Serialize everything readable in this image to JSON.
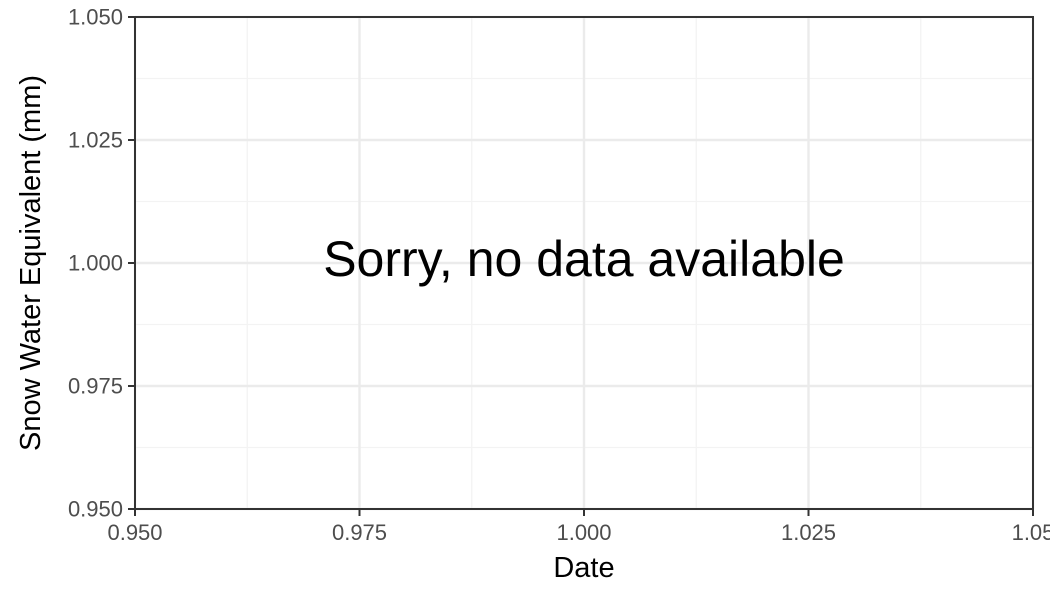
{
  "chart_data": {
    "type": "line",
    "title": "",
    "xlabel": "Date",
    "ylabel": "Snow Water Equivalent (mm)",
    "xlim": [
      0.95,
      1.05
    ],
    "ylim": [
      0.95,
      1.05
    ],
    "x_ticks": [
      "0.950",
      "0.975",
      "1.000",
      "1.025",
      "1.05"
    ],
    "y_ticks": [
      "0.950",
      "0.975",
      "1.000",
      "1.025",
      "1.050"
    ],
    "series": [],
    "grid": true,
    "annotation": "Sorry, no data available",
    "colors": {
      "panel_border": "#333333",
      "grid_major": "#ebebeb",
      "grid_minor": "#f3f3f3",
      "tick_text": "#4d4d4d",
      "text": "#000000"
    }
  }
}
